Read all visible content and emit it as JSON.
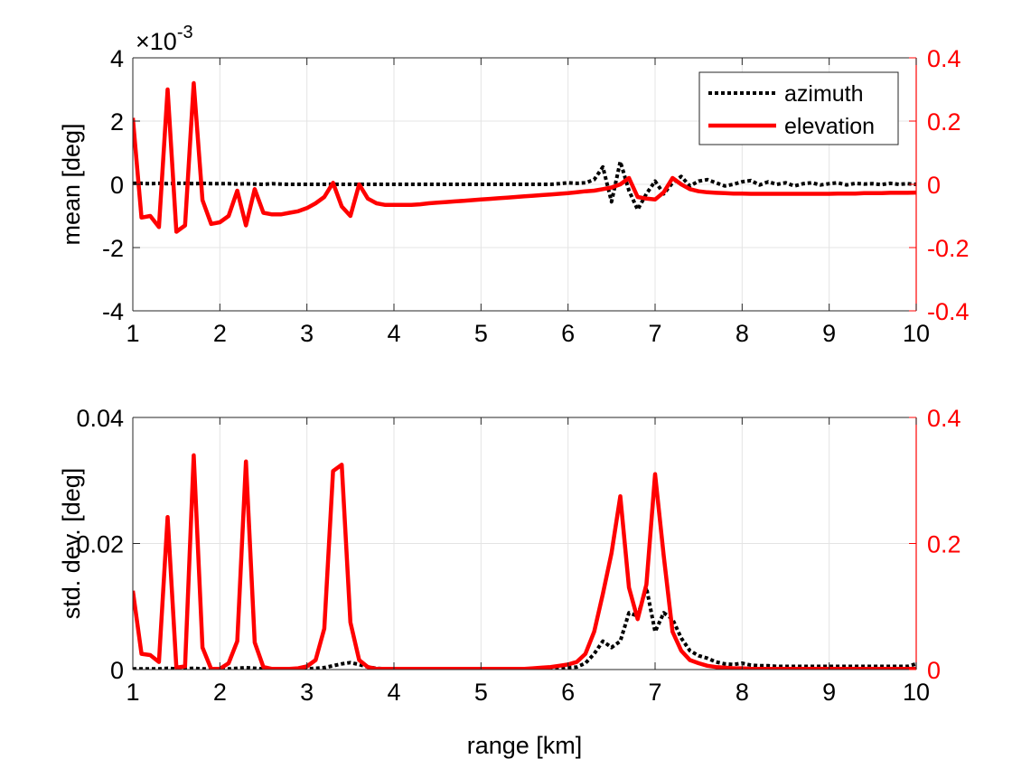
{
  "chart_data": [
    {
      "type": "line",
      "ylabel": "mean [deg]",
      "xlabel": "",
      "exponent_label": "×10",
      "exponent_power": "-3",
      "xlim": [
        1,
        10
      ],
      "xticks": [
        "1",
        "2",
        "3",
        "4",
        "5",
        "6",
        "7",
        "8",
        "9",
        "10"
      ],
      "ylim_left": [
        -4,
        4
      ],
      "yticks_left": [
        "-4",
        "-2",
        "0",
        "2",
        "4"
      ],
      "ylim_right": [
        -0.4,
        0.4
      ],
      "yticks_right": [
        "-0.4",
        "-0.2",
        "0",
        "0.2",
        "0.4"
      ],
      "grid": true,
      "legend_position": "top-right",
      "x": [
        1.0,
        1.1,
        1.2,
        1.3,
        1.4,
        1.5,
        1.6,
        1.7,
        1.8,
        1.9,
        2.0,
        2.1,
        2.2,
        2.3,
        2.4,
        2.5,
        2.6,
        2.7,
        2.8,
        2.9,
        3.0,
        3.1,
        3.2,
        3.3,
        3.4,
        3.5,
        3.6,
        3.7,
        3.8,
        3.9,
        4.0,
        4.1,
        4.2,
        4.3,
        4.4,
        4.5,
        4.6,
        4.7,
        4.8,
        4.9,
        5.0,
        5.1,
        5.2,
        5.3,
        5.4,
        5.5,
        5.6,
        5.7,
        5.8,
        5.9,
        6.0,
        6.1,
        6.2,
        6.3,
        6.4,
        6.5,
        6.6,
        6.7,
        6.8,
        6.9,
        7.0,
        7.1,
        7.2,
        7.3,
        7.4,
        7.5,
        7.6,
        7.7,
        7.8,
        7.9,
        8.0,
        8.1,
        8.2,
        8.3,
        8.4,
        8.5,
        8.6,
        8.7,
        8.8,
        8.9,
        9.0,
        9.1,
        9.2,
        9.3,
        9.4,
        9.5,
        9.6,
        9.7,
        9.8,
        9.9,
        10.0
      ],
      "series": [
        {
          "name": "azimuth",
          "axis": "left",
          "color": "#000000",
          "style": "dotted",
          "values": [
            0.03,
            0.03,
            0.02,
            0.03,
            0.02,
            0.03,
            0.03,
            0.02,
            0.03,
            0.02,
            0.02,
            0.02,
            0.01,
            0.02,
            0.01,
            0.0,
            0.02,
            0.01,
            0.0,
            0.0,
            0.0,
            0.0,
            0.0,
            0.0,
            0.0,
            0.0,
            0.0,
            0.0,
            0.0,
            0.0,
            0.0,
            0.0,
            0.0,
            0.0,
            0.0,
            0.0,
            0.0,
            0.0,
            0.0,
            0.0,
            0.0,
            0.0,
            0.0,
            0.0,
            0.0,
            0.0,
            0.0,
            0.0,
            0.0,
            0.02,
            0.05,
            0.03,
            0.05,
            0.15,
            0.55,
            -0.55,
            0.72,
            -0.2,
            -0.8,
            -0.3,
            0.1,
            -0.3,
            0.05,
            0.25,
            -0.05,
            0.1,
            0.15,
            0.05,
            -0.05,
            0.0,
            0.08,
            0.12,
            -0.02,
            0.08,
            0.0,
            0.05,
            -0.05,
            0.02,
            0.05,
            -0.02,
            0.02,
            0.05,
            -0.02,
            0.03,
            0.01,
            0.02,
            -0.01,
            0.03,
            0.0,
            0.02,
            0.0
          ]
        },
        {
          "name": "elevation",
          "axis": "right",
          "color": "#ff0000",
          "style": "solid",
          "values": [
            0.21,
            -0.105,
            -0.1,
            -0.135,
            0.3,
            -0.15,
            -0.13,
            0.32,
            -0.05,
            -0.125,
            -0.12,
            -0.1,
            -0.02,
            -0.13,
            -0.015,
            -0.09,
            -0.095,
            -0.095,
            -0.09,
            -0.085,
            -0.075,
            -0.06,
            -0.04,
            0.005,
            -0.07,
            -0.1,
            0.0,
            -0.045,
            -0.06,
            -0.065,
            -0.065,
            -0.065,
            -0.065,
            -0.063,
            -0.06,
            -0.058,
            -0.056,
            -0.054,
            -0.052,
            -0.05,
            -0.048,
            -0.046,
            -0.044,
            -0.042,
            -0.04,
            -0.038,
            -0.036,
            -0.034,
            -0.032,
            -0.03,
            -0.028,
            -0.025,
            -0.022,
            -0.02,
            -0.015,
            -0.01,
            0.0,
            0.02,
            -0.04,
            -0.045,
            -0.048,
            -0.025,
            0.02,
            0.0,
            -0.015,
            -0.022,
            -0.025,
            -0.027,
            -0.028,
            -0.029,
            -0.029,
            -0.03,
            -0.03,
            -0.03,
            -0.03,
            -0.03,
            -0.03,
            -0.03,
            -0.03,
            -0.03,
            -0.03,
            -0.029,
            -0.029,
            -0.029,
            -0.028,
            -0.028,
            -0.028,
            -0.027,
            -0.027,
            -0.027,
            -0.026
          ]
        }
      ]
    },
    {
      "type": "line",
      "ylabel": "std. dev. [deg]",
      "xlabel": "range [km]",
      "xlim": [
        1,
        10
      ],
      "xticks": [
        "1",
        "2",
        "3",
        "4",
        "5",
        "6",
        "7",
        "8",
        "9",
        "10"
      ],
      "ylim_left": [
        0,
        0.04
      ],
      "yticks_left": [
        "0",
        "0.02",
        "0.04"
      ],
      "ylim_right": [
        0,
        0.4
      ],
      "yticks_right": [
        "0",
        "0.2",
        "0.4"
      ],
      "grid": true,
      "x": [
        1.0,
        1.1,
        1.2,
        1.3,
        1.4,
        1.5,
        1.6,
        1.7,
        1.8,
        1.9,
        2.0,
        2.1,
        2.2,
        2.3,
        2.4,
        2.5,
        2.6,
        2.7,
        2.8,
        2.9,
        3.0,
        3.1,
        3.2,
        3.3,
        3.4,
        3.5,
        3.6,
        3.7,
        3.8,
        3.9,
        4.0,
        4.1,
        4.2,
        4.3,
        4.4,
        4.5,
        4.6,
        4.7,
        4.8,
        4.9,
        5.0,
        5.1,
        5.2,
        5.3,
        5.4,
        5.5,
        5.6,
        5.7,
        5.8,
        5.9,
        6.0,
        6.1,
        6.2,
        6.3,
        6.4,
        6.5,
        6.6,
        6.7,
        6.8,
        6.9,
        7.0,
        7.1,
        7.2,
        7.3,
        7.4,
        7.5,
        7.6,
        7.7,
        7.8,
        7.9,
        8.0,
        8.1,
        8.2,
        8.3,
        8.4,
        8.5,
        8.6,
        8.7,
        8.8,
        8.9,
        9.0,
        9.1,
        9.2,
        9.3,
        9.4,
        9.5,
        9.6,
        9.7,
        9.8,
        9.9,
        10.0
      ],
      "series": [
        {
          "name": "azimuth",
          "axis": "left",
          "color": "#000000",
          "style": "dotted",
          "values": [
            0.0001,
            0.0001,
            0.0001,
            0.0001,
            0.0002,
            0.0001,
            0.0001,
            0.0002,
            0.0001,
            0.0001,
            0.0001,
            0.0001,
            0.0002,
            0.0003,
            0.0002,
            0.0001,
            0.0001,
            0.0001,
            0.0001,
            0.0001,
            0.0001,
            0.0002,
            0.0003,
            0.0006,
            0.0009,
            0.0011,
            0.0008,
            0.0004,
            0.0002,
            0.0001,
            0.0001,
            0.0001,
            0.0001,
            0.0001,
            0.0001,
            0.0001,
            0.0001,
            0.0001,
            0.0001,
            0.0001,
            0.0001,
            0.0001,
            0.0001,
            0.0001,
            0.0001,
            0.0001,
            0.0001,
            0.0001,
            0.0001,
            0.0002,
            0.0003,
            0.0004,
            0.001,
            0.0025,
            0.0045,
            0.0035,
            0.0045,
            0.009,
            0.0085,
            0.013,
            0.006,
            0.009,
            0.008,
            0.005,
            0.003,
            0.0022,
            0.0018,
            0.0012,
            0.0009,
            0.0008,
            0.001,
            0.0007,
            0.0006,
            0.0006,
            0.0005,
            0.0005,
            0.0005,
            0.0005,
            0.0005,
            0.0005,
            0.0005,
            0.0005,
            0.0005,
            0.0005,
            0.0005,
            0.0005,
            0.0005,
            0.0005,
            0.0005,
            0.0005,
            0.0009
          ]
        },
        {
          "name": "elevation",
          "axis": "right",
          "color": "#ff0000",
          "style": "solid",
          "values": [
            0.125,
            0.025,
            0.023,
            0.012,
            0.242,
            0.003,
            0.005,
            0.34,
            0.035,
            0.001,
            0.001,
            0.01,
            0.045,
            0.33,
            0.043,
            0.004,
            0.001,
            0.001,
            0.001,
            0.002,
            0.005,
            0.015,
            0.065,
            0.315,
            0.325,
            0.075,
            0.015,
            0.004,
            0.001,
            0.001,
            0.001,
            0.001,
            0.001,
            0.001,
            0.001,
            0.001,
            0.001,
            0.001,
            0.001,
            0.001,
            0.001,
            0.001,
            0.001,
            0.001,
            0.001,
            0.001,
            0.002,
            0.003,
            0.004,
            0.006,
            0.008,
            0.012,
            0.025,
            0.06,
            0.12,
            0.185,
            0.275,
            0.13,
            0.08,
            0.135,
            0.31,
            0.18,
            0.06,
            0.03,
            0.015,
            0.01,
            0.006,
            0.004,
            0.003,
            0.002,
            0.002,
            0.001,
            0.001,
            0.001,
            0.001,
            0.001,
            0.001,
            0.001,
            0.001,
            0.001,
            0.001,
            0.001,
            0.001,
            0.001,
            0.001,
            0.001,
            0.001,
            0.001,
            0.001,
            0.001,
            0.001
          ]
        }
      ]
    }
  ]
}
